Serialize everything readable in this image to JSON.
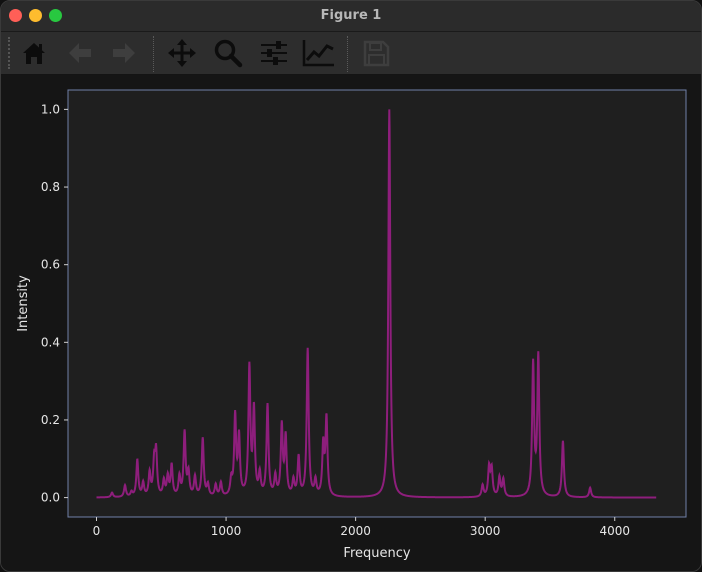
{
  "window": {
    "title": "Figure 1"
  },
  "toolbar": {
    "buttons": [
      {
        "name": "home",
        "icon": "home-icon"
      },
      {
        "name": "back",
        "icon": "arrow-left-icon"
      },
      {
        "name": "forward",
        "icon": "arrow-right-icon"
      },
      {
        "name": "pan",
        "icon": "move-icon"
      },
      {
        "name": "zoom",
        "icon": "zoom-icon"
      },
      {
        "name": "configure",
        "icon": "sliders-icon"
      },
      {
        "name": "edit",
        "icon": "line-chart-icon"
      },
      {
        "name": "save",
        "icon": "save-icon"
      }
    ]
  },
  "chart_data": {
    "type": "line",
    "title": "",
    "xlabel": "Frequency",
    "ylabel": "Intensity",
    "xlim": [
      -220,
      4550
    ],
    "ylim": [
      -0.05,
      1.05
    ],
    "xticks": [
      0,
      1000,
      2000,
      3000,
      4000
    ],
    "xtick_labels": [
      "0",
      "1000",
      "2000",
      "3000",
      "4000"
    ],
    "yticks": [
      0.0,
      0.2,
      0.4,
      0.6,
      0.8,
      1.0
    ],
    "ytick_labels": [
      "0.0",
      "0.2",
      "0.4",
      "0.6",
      "0.8",
      "1.0"
    ],
    "line_color": "#8e1e7c",
    "x_range": [
      0,
      4320
    ],
    "peaks": [
      {
        "x": 120,
        "y": 0.012
      },
      {
        "x": 220,
        "y": 0.03
      },
      {
        "x": 270,
        "y": 0.012
      },
      {
        "x": 315,
        "y": 0.095
      },
      {
        "x": 360,
        "y": 0.035
      },
      {
        "x": 410,
        "y": 0.06
      },
      {
        "x": 445,
        "y": 0.085
      },
      {
        "x": 460,
        "y": 0.11
      },
      {
        "x": 520,
        "y": 0.04
      },
      {
        "x": 550,
        "y": 0.05
      },
      {
        "x": 580,
        "y": 0.08
      },
      {
        "x": 640,
        "y": 0.05
      },
      {
        "x": 680,
        "y": 0.165
      },
      {
        "x": 710,
        "y": 0.06
      },
      {
        "x": 760,
        "y": 0.05
      },
      {
        "x": 820,
        "y": 0.15
      },
      {
        "x": 860,
        "y": 0.03
      },
      {
        "x": 920,
        "y": 0.03
      },
      {
        "x": 960,
        "y": 0.035
      },
      {
        "x": 1040,
        "y": 0.04
      },
      {
        "x": 1070,
        "y": 0.205
      },
      {
        "x": 1100,
        "y": 0.15
      },
      {
        "x": 1180,
        "y": 0.33
      },
      {
        "x": 1215,
        "y": 0.22
      },
      {
        "x": 1260,
        "y": 0.055
      },
      {
        "x": 1320,
        "y": 0.235
      },
      {
        "x": 1380,
        "y": 0.05
      },
      {
        "x": 1430,
        "y": 0.18
      },
      {
        "x": 1460,
        "y": 0.15
      },
      {
        "x": 1520,
        "y": 0.04
      },
      {
        "x": 1560,
        "y": 0.1
      },
      {
        "x": 1630,
        "y": 0.38
      },
      {
        "x": 1690,
        "y": 0.04
      },
      {
        "x": 1750,
        "y": 0.13
      },
      {
        "x": 1775,
        "y": 0.2
      },
      {
        "x": 2260,
        "y": 1.0
      },
      {
        "x": 2980,
        "y": 0.03
      },
      {
        "x": 3030,
        "y": 0.075
      },
      {
        "x": 3050,
        "y": 0.07
      },
      {
        "x": 3110,
        "y": 0.05
      },
      {
        "x": 3140,
        "y": 0.045
      },
      {
        "x": 3370,
        "y": 0.34
      },
      {
        "x": 3410,
        "y": 0.36
      },
      {
        "x": 3600,
        "y": 0.145
      },
      {
        "x": 3810,
        "y": 0.025
      }
    ]
  }
}
